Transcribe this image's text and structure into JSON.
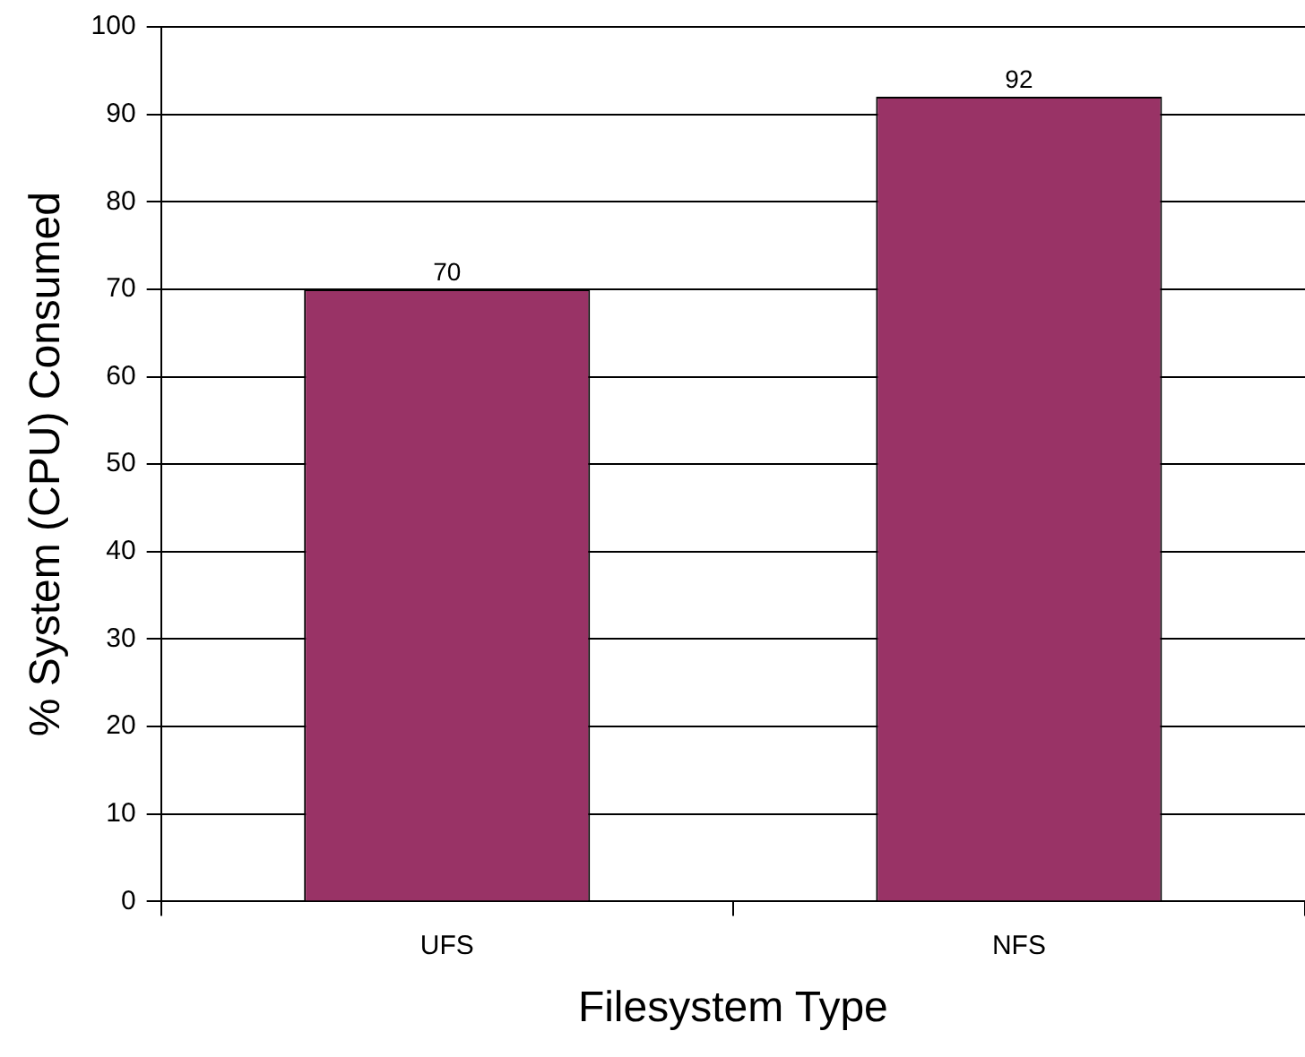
{
  "chart_data": {
    "type": "bar",
    "xlabel": "Filesystem Type",
    "ylabel": "% System (CPU) Consumed",
    "categories": [
      "UFS",
      "NFS"
    ],
    "values": [
      70,
      92
    ],
    "color": "#993366",
    "ylim": [
      0,
      100
    ],
    "yticks": [
      0,
      10,
      20,
      30,
      40,
      50,
      60,
      70,
      80,
      90,
      100
    ],
    "grid": "y",
    "data_labels": true
  }
}
